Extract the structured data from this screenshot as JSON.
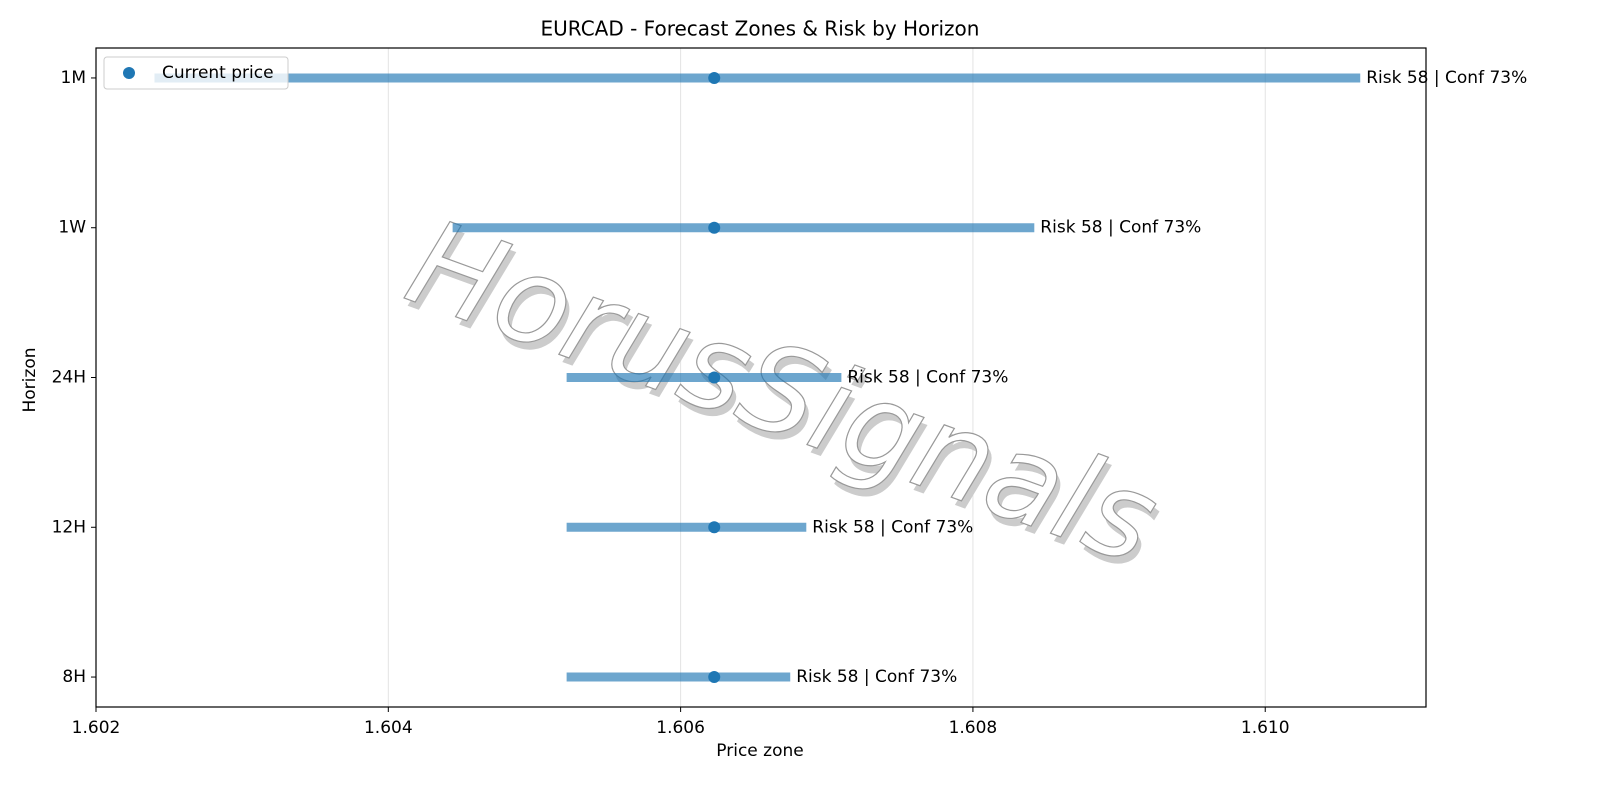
{
  "chart_data": {
    "type": "range",
    "title": "EURCAD - Forecast Zones & Risk by Horizon",
    "xlabel": "Price zone",
    "ylabel": "Horizon",
    "categories": [
      "8H",
      "12H",
      "24H",
      "1W",
      "1M"
    ],
    "low": [
      1.60522,
      1.60522,
      1.60522,
      1.60444,
      1.6024
    ],
    "high": [
      1.60675,
      1.60686,
      1.6071,
      1.60842,
      1.61065
    ],
    "bar_color": "#1f77b4",
    "current": {
      "name": "Current price",
      "color": "#1f77b4",
      "values": [
        1.60623,
        1.60623,
        1.60623,
        1.60623,
        1.60623
      ]
    },
    "annotations": [
      "Risk 58 | Conf 73%",
      "Risk 58 | Conf 73%",
      "Risk 58 | Conf 73%",
      "Risk 58 | Conf 73%",
      "Risk 58 | Conf 73%"
    ],
    "xlim": [
      1.602,
      1.6111
    ],
    "xticks": [
      1.602,
      1.604,
      1.606,
      1.608,
      {
        "value": 1.61,
        "label": "1.610"
      }
    ],
    "grid": true,
    "legend": "upper-left",
    "watermark": "HorusSignals"
  }
}
